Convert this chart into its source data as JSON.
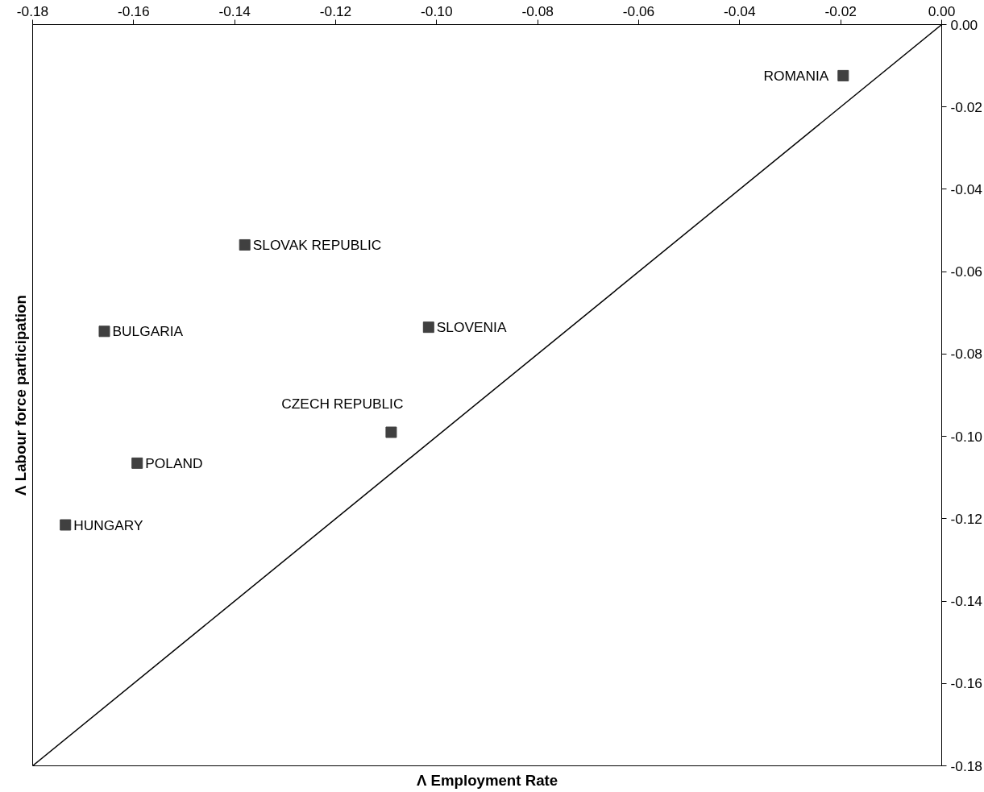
{
  "chart_data": {
    "type": "scatter",
    "xlabel": "Λ Employment Rate",
    "ylabel": "Λ Labour force participation",
    "xlim": [
      -0.18,
      0.0
    ],
    "ylim": [
      -0.18,
      0.0
    ],
    "xticks": [
      {
        "value": -0.18,
        "label": "-0.18"
      },
      {
        "value": -0.16,
        "label": "-0.16"
      },
      {
        "value": -0.14,
        "label": "-0.14"
      },
      {
        "value": -0.12,
        "label": "-0.12"
      },
      {
        "value": -0.1,
        "label": "-0.10"
      },
      {
        "value": -0.08,
        "label": "-0.08"
      },
      {
        "value": -0.06,
        "label": "-0.06"
      },
      {
        "value": -0.04,
        "label": "-0.04"
      },
      {
        "value": -0.02,
        "label": "-0.02"
      },
      {
        "value": 0.0,
        "label": "0.00"
      }
    ],
    "yticks": [
      {
        "value": -0.18,
        "label": "-0.18"
      },
      {
        "value": -0.16,
        "label": "-0.16"
      },
      {
        "value": -0.14,
        "label": "-0.14"
      },
      {
        "value": -0.12,
        "label": "-0.12"
      },
      {
        "value": -0.1,
        "label": "-0.10"
      },
      {
        "value": -0.08,
        "label": "-0.08"
      },
      {
        "value": -0.06,
        "label": "-0.06"
      },
      {
        "value": -0.04,
        "label": "-0.04"
      },
      {
        "value": -0.02,
        "label": "-0.02"
      },
      {
        "value": 0.0,
        "label": "0.00"
      }
    ],
    "grid": false,
    "marker": "square",
    "series": [
      {
        "color": "#404040",
        "x": [
          -0.0195,
          -0.138,
          -0.1658,
          -0.1016,
          -0.109,
          -0.1593,
          -0.1735
        ],
        "values": [
          -0.0124,
          -0.0535,
          -0.0745,
          -0.0735,
          -0.099,
          -0.1065,
          -0.1215
        ]
      },
      {
        "type": "line",
        "marker": "none",
        "color": "#000000",
        "x": [
          -0.18,
          0.0
        ],
        "values": [
          -0.18,
          0.0
        ]
      }
    ],
    "annotations": [
      {
        "text": "ROMANIA",
        "x": -0.0195,
        "y": -0.0124
      },
      {
        "text": "SLOVAK REPUBLIC",
        "x": -0.138,
        "y": -0.0535
      },
      {
        "text": "BULGARIA",
        "x": -0.1658,
        "y": -0.0745
      },
      {
        "text": "SLOVENIA",
        "x": -0.1016,
        "y": -0.0735
      },
      {
        "text": "CZECH REPUBLIC",
        "x": -0.109,
        "y": -0.099
      },
      {
        "text": "POLAND",
        "x": -0.1593,
        "y": -0.1065
      },
      {
        "text": "HUNGARY",
        "x": -0.1735,
        "y": -0.1215
      }
    ]
  }
}
